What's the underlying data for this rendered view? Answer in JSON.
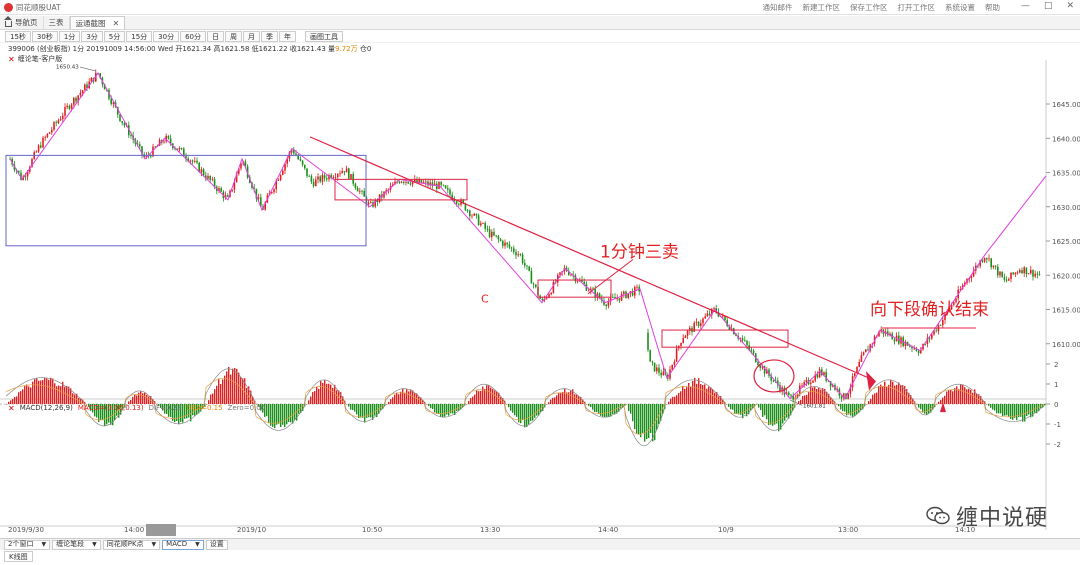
{
  "app": {
    "title": "同花顺股UAT"
  },
  "top_menu": [
    "通知邮件",
    "新建工作区",
    "保存工作区",
    "打开工作区",
    "系统设置",
    "帮助"
  ],
  "tabs": [
    {
      "label": "导航页",
      "icon": "home-icon"
    },
    {
      "label": "三表"
    },
    {
      "label": "运通截图",
      "active": true
    }
  ],
  "periods": [
    "15秒",
    "30秒",
    "1分",
    "3分",
    "5分",
    "15分",
    "30分",
    "60分",
    "日",
    "周",
    "月",
    "季",
    "年"
  ],
  "draw_tool_label": "画图工具",
  "quote_line": {
    "prefix": "399006 (创业板指) 1分 20191009 14:56:00 Wed 开1621.34 高1621.58 低1621.22 收1621.43 量",
    "volume": "9.72万",
    "suffix": "仓0"
  },
  "indicator_label": "缠论笔-客户版",
  "macd_label": {
    "name": "MACD(12,26,9)",
    "macd": "MACD=(0.00,0.13)",
    "dif": "DIF=0.22",
    "dea": "DEA=0.15",
    "zero": "Zero=0.00"
  },
  "annotations": {
    "sell_text": "1分钟三卖",
    "end_text": "向下段确认结束",
    "c_label": "C",
    "high_label": "1650.43",
    "low_label": "1601.81"
  },
  "price_axis": [
    "1645.00",
    "1640.00",
    "1635.00",
    "1630.00",
    "1625.00",
    "1620.00",
    "1615.00",
    "1610.00"
  ],
  "macd_axis": [
    "2",
    "1",
    "0",
    "-1",
    "-2"
  ],
  "time_axis": [
    "2019/9/30",
    "14:00",
    "2019/10",
    "10:50",
    "13:30",
    "14:40",
    "10/9",
    "13:00",
    "14:10"
  ],
  "bottom_controls": [
    "2个窗口",
    "缠论笔段",
    "同花顺PK点",
    "MACD",
    "设置"
  ],
  "bottom_tab": "K线图",
  "watermark": "缠中说硬",
  "colors": {
    "up": "#e02020",
    "down": "#1a8f1a",
    "pen_line": "#e040e0",
    "trend_line": "#e02040",
    "center_box": "#6666cc",
    "dif_line": "#888888",
    "dea_line": "#e8a040"
  }
}
